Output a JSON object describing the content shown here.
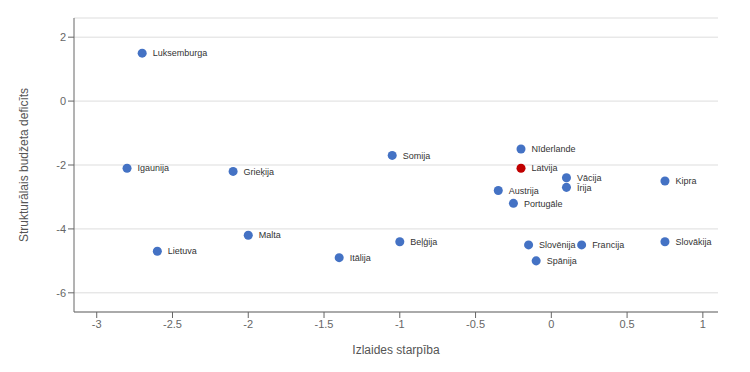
{
  "chart_data": {
    "type": "scatter",
    "xlabel": "Izlaides starpība",
    "ylabel": "Strukturālais budžeta deficīts",
    "labels": [
      "Luksemburga",
      "Igaunija",
      "Grieķija",
      "Somija",
      "Lietuva",
      "Malta",
      "Itālija",
      "Beļģija",
      "Nīderlande",
      "Latvija",
      "Austrija",
      "Portugāle",
      "Vācija",
      "Īrija",
      "Kipra",
      "Slovēnija",
      "Francija",
      "Slovākija",
      "Spānija"
    ],
    "x": [
      -2.7,
      -2.8,
      -2.1,
      -1.05,
      -2.6,
      -2.0,
      -1.4,
      -1.0,
      -0.2,
      -0.2,
      -0.35,
      -0.25,
      0.1,
      0.1,
      0.75,
      -0.15,
      0.2,
      0.75,
      -0.1
    ],
    "values": [
      1.5,
      -2.1,
      -2.2,
      -1.7,
      -4.7,
      -4.2,
      -4.9,
      -4.4,
      -1.5,
      -2.1,
      -2.8,
      -3.2,
      -2.4,
      -2.7,
      -2.5,
      -4.5,
      -4.5,
      -4.4,
      -5.0
    ],
    "colors": [
      "#4472C4",
      "#4472C4",
      "#4472C4",
      "#4472C4",
      "#4472C4",
      "#4472C4",
      "#4472C4",
      "#4472C4",
      "#4472C4",
      "#C00000",
      "#4472C4",
      "#4472C4",
      "#4472C4",
      "#4472C4",
      "#4472C4",
      "#4472C4",
      "#4472C4",
      "#4472C4",
      "#4472C4"
    ],
    "xlim": [
      -3.15,
      1.1
    ],
    "ylim": [
      -6.6,
      2.6
    ],
    "xticks": [
      -3,
      -2.5,
      -2,
      -1.5,
      -1,
      -0.5,
      0,
      0.5,
      1
    ],
    "yticks": [
      -6,
      -4,
      -2,
      0,
      2
    ],
    "grid": true
  }
}
